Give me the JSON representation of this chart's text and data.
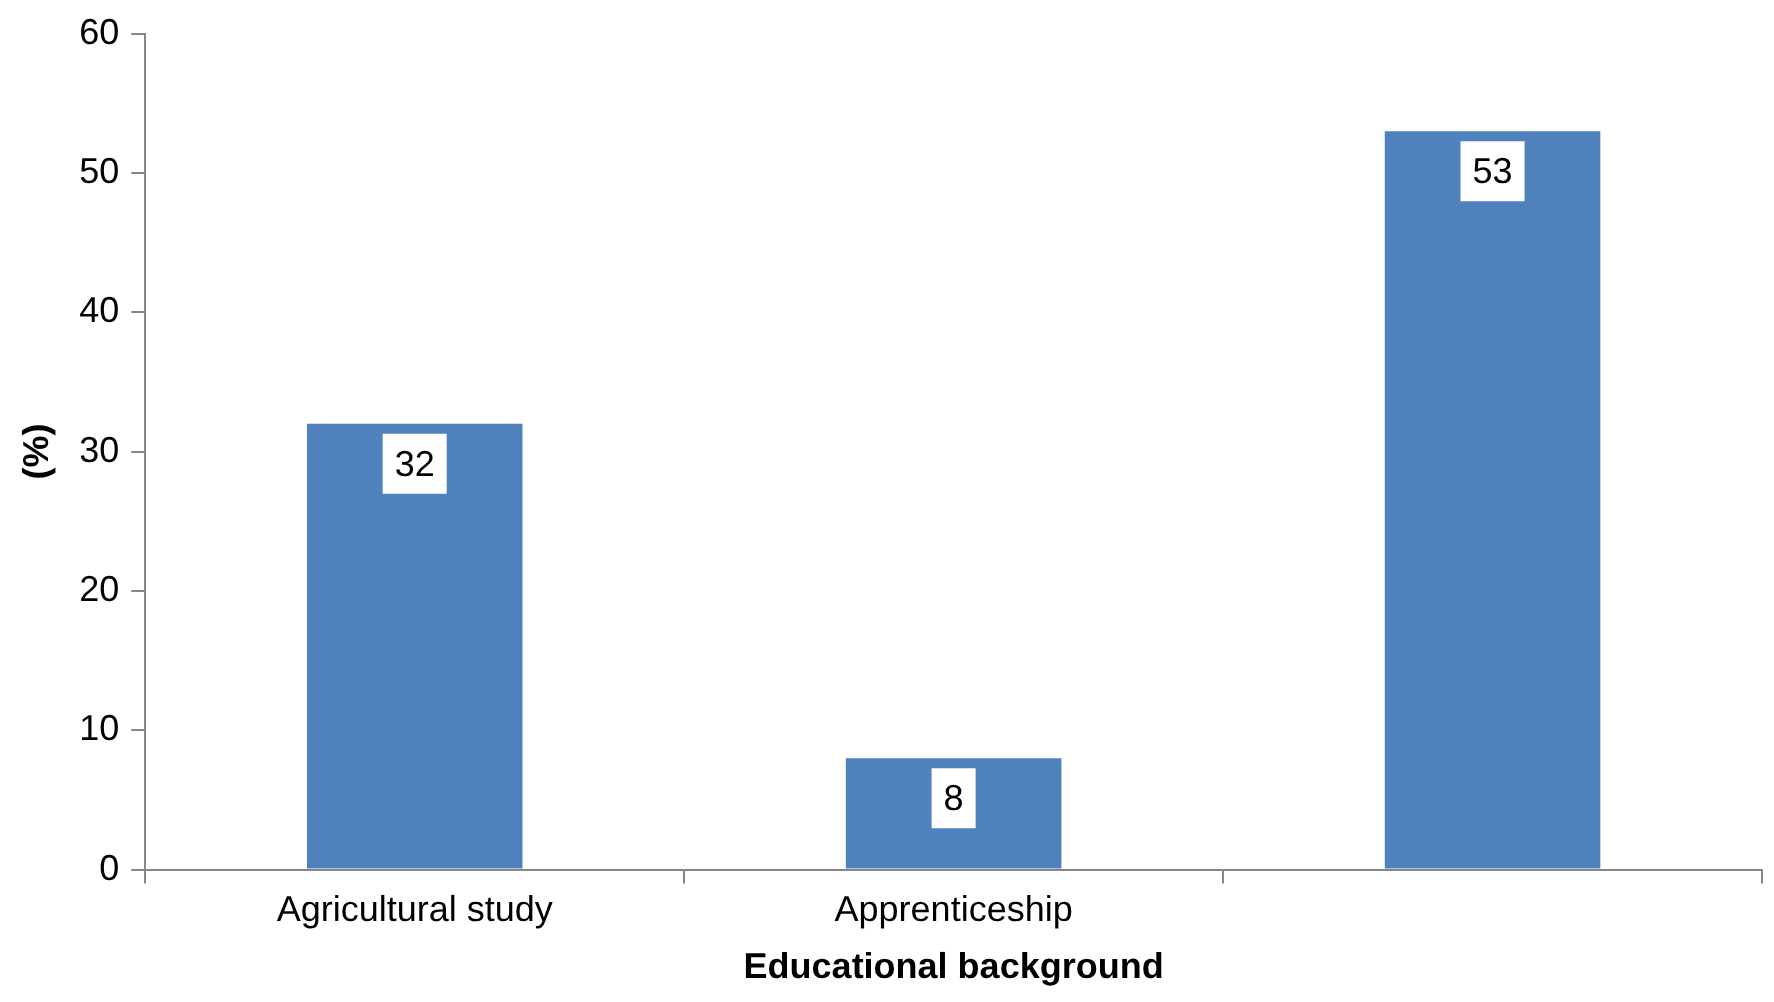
{
  "chart_data": {
    "type": "bar",
    "xlabel": "Educational background",
    "ylabel": "(%)",
    "categories": [
      "Agricultural study",
      "Apprenticeship",
      null
    ],
    "values": [
      32,
      8,
      53
    ],
    "color": "#4f81bd",
    "ylim": [
      0,
      60
    ],
    "yticks": [
      0,
      10,
      20,
      30,
      40,
      50,
      60
    ],
    "grid": false,
    "legend": false,
    "data_labels": true
  }
}
